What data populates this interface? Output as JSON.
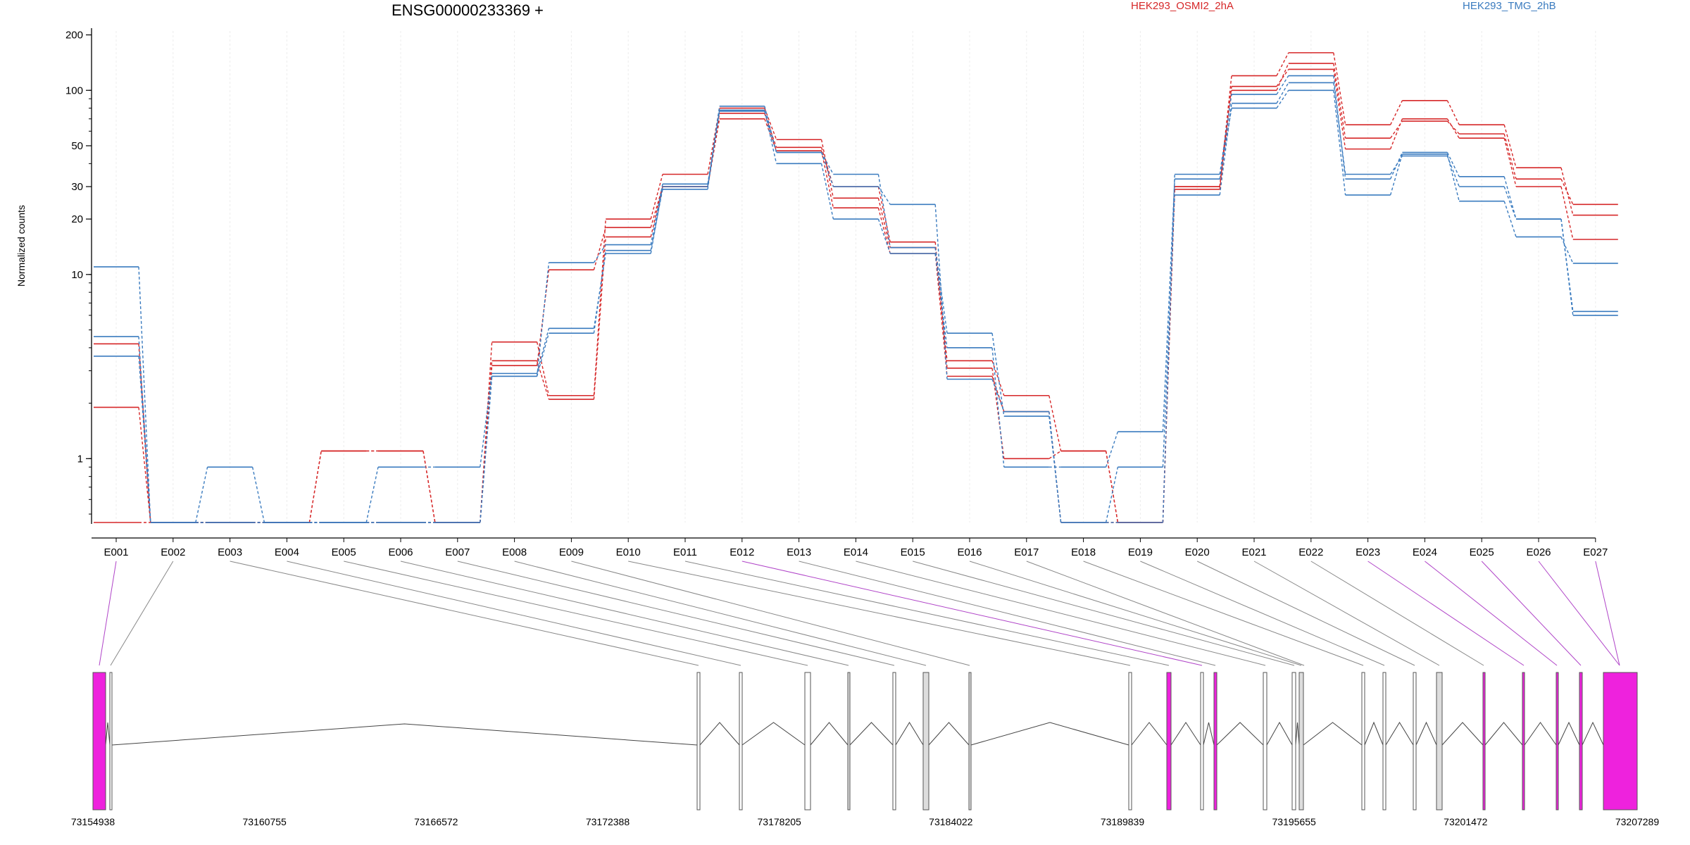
{
  "chart_data": {
    "type": "line",
    "title": "ENSG00000233369 +",
    "ylabel": "Normalized counts",
    "yscale": "log",
    "ylim": [
      0.45,
      210
    ],
    "yticks": [
      "1",
      "10",
      "20",
      "30",
      "50",
      "100",
      "200"
    ],
    "categories": [
      "E001",
      "E002",
      "E003",
      "E004",
      "E005",
      "E006",
      "E007",
      "E008",
      "E009",
      "E010",
      "E011",
      "E012",
      "E013",
      "E014",
      "E015",
      "E016",
      "E017",
      "E018",
      "E019",
      "E020",
      "E021",
      "E022",
      "E023",
      "E024",
      "E025",
      "E026",
      "E027"
    ],
    "legend": [
      {
        "label": "HEK293_OSMI2_2hA",
        "color": "#d62728"
      },
      {
        "label": "HEK293_TMG_2hB",
        "color": "#3a7bbf"
      }
    ],
    "series": [
      {
        "group": "HEK293_OSMI2_2hA",
        "color": "#d62728",
        "values": [
          0.45,
          0.45,
          0.45,
          0.45,
          1.1,
          1.1,
          0.45,
          3.4,
          2.1,
          16,
          30,
          75,
          49,
          30,
          15,
          3.1,
          1.0,
          1.1,
          0.45,
          30,
          120,
          160,
          65,
          88,
          65,
          38,
          21
        ]
      },
      {
        "group": "HEK293_OSMI2_2hA",
        "color": "#d62728",
        "values": [
          4.2,
          0.45,
          0.45,
          0.45,
          0.45,
          0.45,
          0.45,
          4.3,
          2.2,
          20,
          35,
          80,
          54,
          26,
          14,
          3.4,
          2.2,
          1.1,
          0.45,
          29,
          100,
          140,
          55,
          68,
          58,
          33,
          24
        ]
      },
      {
        "group": "HEK293_OSMI2_2hA",
        "color": "#d62728",
        "values": [
          1.9,
          0.45,
          0.45,
          0.45,
          1.1,
          1.1,
          0.45,
          3.2,
          10.6,
          18,
          30,
          70,
          47,
          23,
          13,
          2.8,
          1.8,
          0.45,
          0.45,
          30,
          105,
          130,
          48,
          70,
          55,
          30,
          15.5
        ]
      },
      {
        "group": "HEK293_TMG_2hB",
        "color": "#3a7bbf",
        "values": [
          11,
          0.45,
          0.9,
          0.45,
          0.45,
          0.9,
          0.9,
          2.9,
          5.1,
          13,
          30,
          78,
          40,
          20,
          13,
          4.0,
          0.9,
          0.9,
          1.4,
          33,
          80,
          100,
          27,
          45,
          25,
          16,
          11.5
        ]
      },
      {
        "group": "HEK293_TMG_2hB",
        "color": "#3a7bbf",
        "values": [
          4.6,
          0.45,
          0.45,
          0.45,
          0.45,
          0.45,
          0.45,
          2.8,
          4.8,
          13.5,
          29,
          82,
          46,
          30,
          24,
          2.7,
          1.8,
          0.45,
          0.9,
          27,
          85,
          110,
          35,
          44,
          30,
          20,
          6.3
        ]
      },
      {
        "group": "HEK293_TMG_2hB",
        "color": "#3a7bbf",
        "values": [
          3.6,
          0.45,
          0.45,
          0.45,
          0.45,
          0.45,
          0.45,
          2.8,
          11.6,
          14.5,
          31,
          77,
          46,
          35,
          14,
          4.8,
          1.7,
          0.45,
          0.45,
          35,
          95,
          120,
          33,
          46,
          34,
          20,
          6.0
        ]
      }
    ],
    "gene_model": {
      "coordinate_ticks": [
        "73154938",
        "73160755",
        "73166572",
        "73172388",
        "73178205",
        "73184022",
        "73189839",
        "73195655",
        "73201472",
        "73207289"
      ]
    }
  }
}
